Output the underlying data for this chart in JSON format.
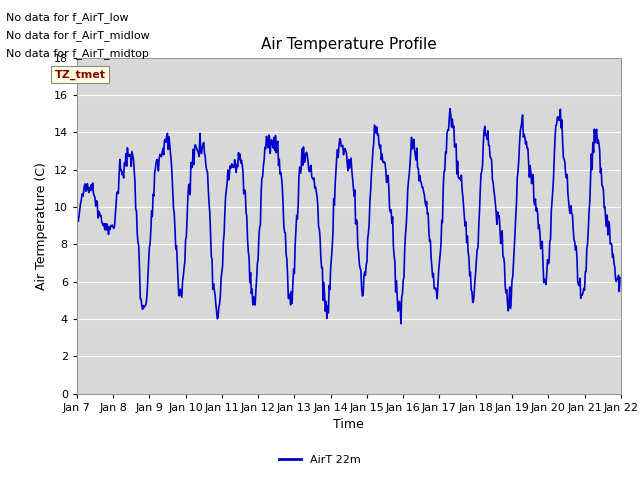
{
  "title": "Air Temperature Profile",
  "xlabel": "Time",
  "ylabel": "Air Termperature (C)",
  "ylim": [
    0,
    18
  ],
  "yticks": [
    0,
    2,
    4,
    6,
    8,
    10,
    12,
    14,
    16,
    18
  ],
  "line_color": "#0000cc",
  "line_width": 1.2,
  "legend_label": "AirT 22m",
  "legend_line_color": "#0000cc",
  "background_color": "#ffffff",
  "plot_bg_color": "#d8d8d8",
  "grid_color": "#ffffff",
  "annotations": [
    "No data for f_AirT_low",
    "No data for f_AirT_midlow",
    "No data for f_AirT_midtop"
  ],
  "tz_label": "TZ_tmet",
  "title_fontsize": 11,
  "axis_fontsize": 9,
  "tick_fontsize": 8,
  "anno_fontsize": 8
}
